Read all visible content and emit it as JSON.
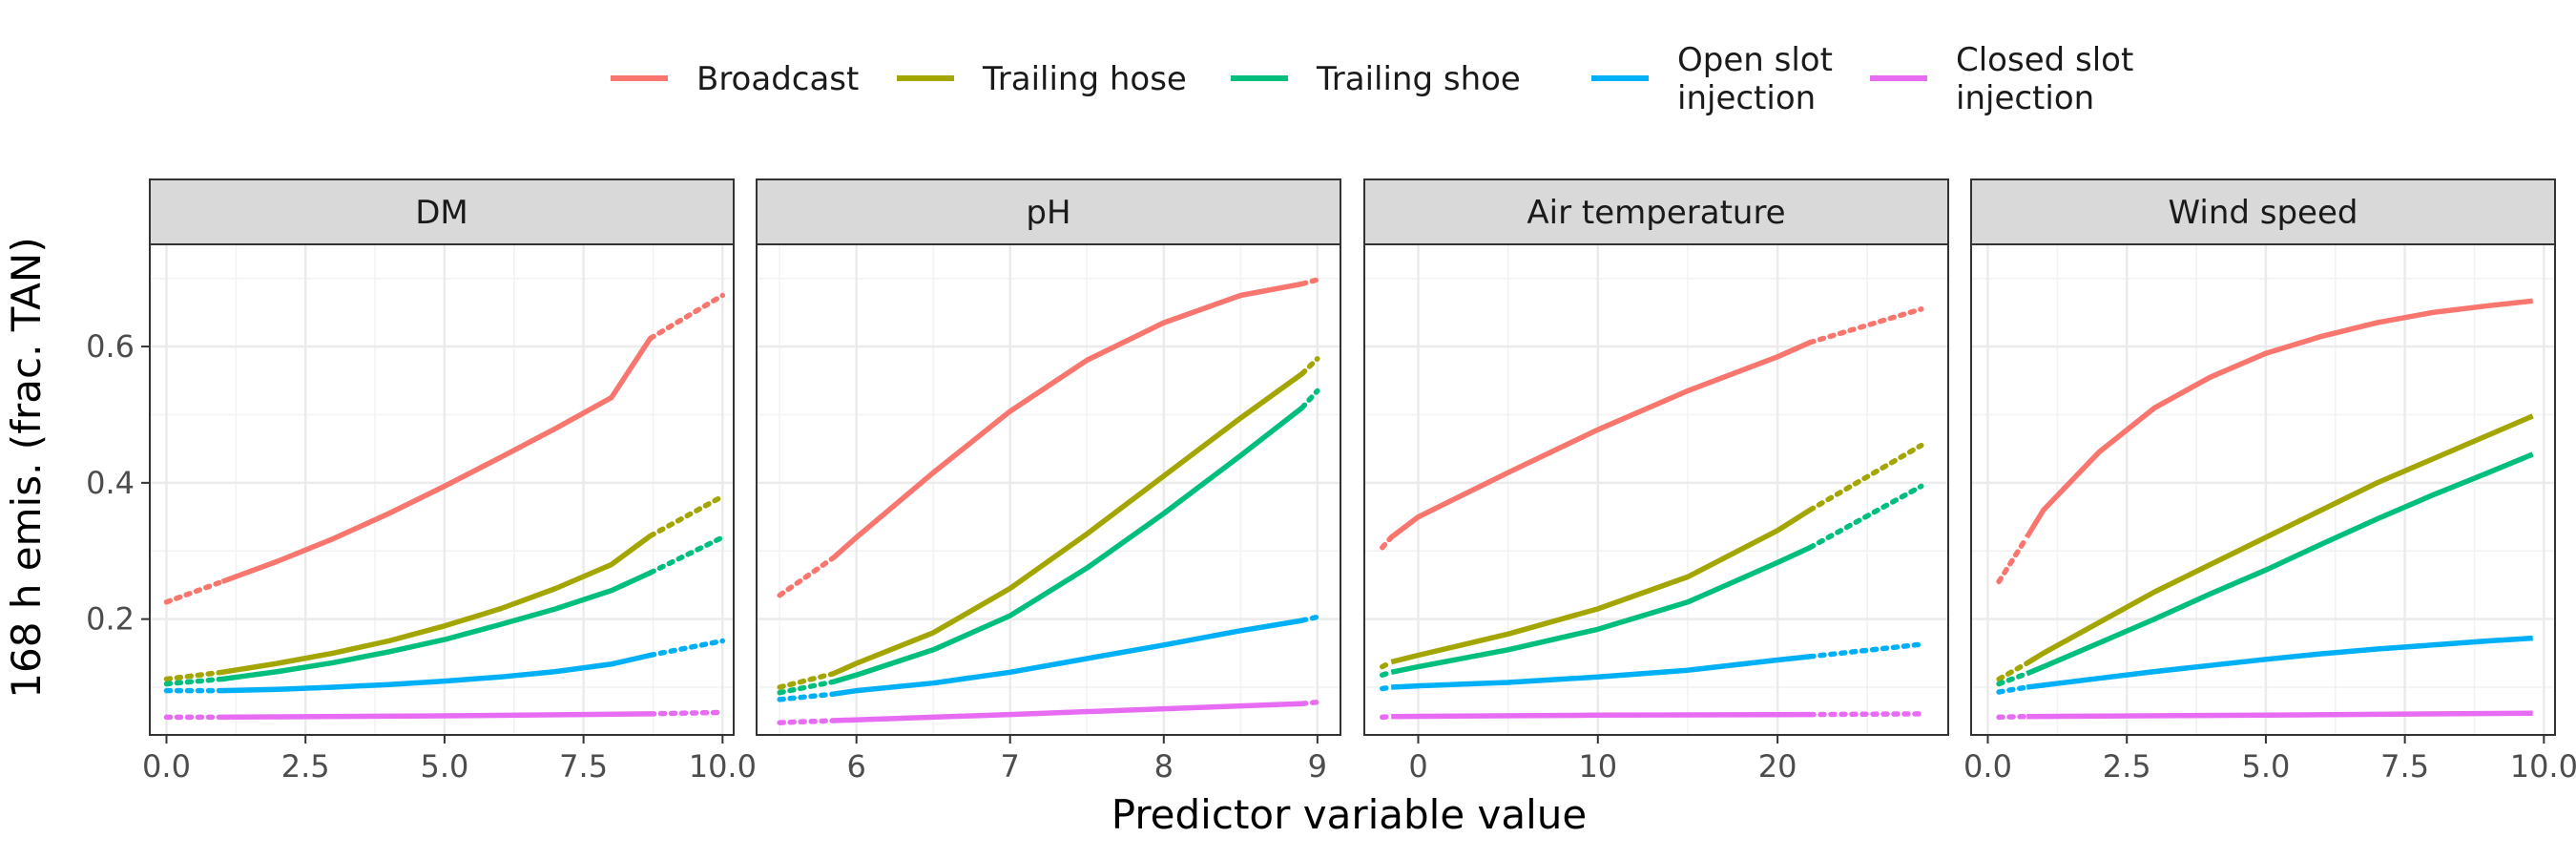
{
  "chart_data": {
    "type": "line",
    "xlabel": "Predictor variable value",
    "ylabel": "168 h emis. (frac. TAN)",
    "ylim": [
      0.03,
      0.75
    ],
    "y_ticks": [
      0.2,
      0.4,
      0.6
    ],
    "y_tick_labels": [
      "0.2",
      "0.4",
      "0.6"
    ],
    "grid": true,
    "legend_position": "top",
    "line_style_note": "solid within observed range, dotted outside",
    "legend": [
      {
        "name": "Broadcast",
        "color": "#F8766D"
      },
      {
        "name": "Trailing hose",
        "color": "#A3A500"
      },
      {
        "name": "Trailing shoe",
        "color": "#00BF7D"
      },
      {
        "name": "Open slot\ninjection",
        "color": "#00B0F6"
      },
      {
        "name": "Closed slot\ninjection",
        "color": "#E76BF3"
      }
    ],
    "panels": [
      {
        "title": "DM",
        "xlim": [
          -0.3,
          10.2
        ],
        "x_ticks": [
          0,
          2.5,
          5,
          7.5,
          10
        ],
        "x_tick_labels": [
          "0.0",
          "2.5",
          "5.0",
          "7.5",
          "10.0"
        ],
        "solid_range": [
          1.0,
          8.7
        ],
        "series": [
          {
            "legend_index": 0,
            "x": [
              0,
              1,
              2,
              3,
              4,
              5,
              6,
              7,
              8,
              8.7,
              10
            ],
            "y": [
              0.225,
              0.255,
              0.285,
              0.318,
              0.355,
              0.395,
              0.437,
              0.48,
              0.525,
              0.612,
              0.675
            ]
          },
          {
            "legend_index": 1,
            "x": [
              0,
              1,
              2,
              3,
              4,
              5,
              6,
              7,
              8,
              8.7,
              10
            ],
            "y": [
              0.112,
              0.122,
              0.135,
              0.15,
              0.168,
              0.19,
              0.215,
              0.245,
              0.28,
              0.322,
              0.38
            ]
          },
          {
            "legend_index": 2,
            "x": [
              0,
              1,
              2,
              3,
              4,
              5,
              6,
              7,
              8,
              8.7,
              10
            ],
            "y": [
              0.105,
              0.112,
              0.123,
              0.136,
              0.152,
              0.17,
              0.192,
              0.215,
              0.242,
              0.268,
              0.32
            ]
          },
          {
            "legend_index": 3,
            "x": [
              0,
              1,
              2,
              3,
              4,
              5,
              6,
              7,
              8,
              8.7,
              10
            ],
            "y": [
              0.095,
              0.095,
              0.097,
              0.1,
              0.104,
              0.109,
              0.115,
              0.123,
              0.134,
              0.147,
              0.168
            ]
          },
          {
            "legend_index": 4,
            "x": [
              0,
              1,
              5,
              8.7,
              10
            ],
            "y": [
              0.056,
              0.056,
              0.058,
              0.061,
              0.063
            ]
          }
        ]
      },
      {
        "title": "pH",
        "xlim": [
          5.35,
          9.15
        ],
        "x_ticks": [
          6,
          7,
          8,
          9
        ],
        "x_tick_labels": [
          "6",
          "7",
          "8",
          "9"
        ],
        "solid_range": [
          5.85,
          8.9
        ],
        "series": [
          {
            "legend_index": 0,
            "x": [
              5.5,
              5.85,
              6,
              6.5,
              7,
              7.5,
              8,
              8.5,
              8.9,
              9.0
            ],
            "y": [
              0.235,
              0.29,
              0.32,
              0.415,
              0.505,
              0.58,
              0.635,
              0.675,
              0.692,
              0.698
            ]
          },
          {
            "legend_index": 1,
            "x": [
              5.5,
              5.85,
              6,
              6.5,
              7,
              7.5,
              8,
              8.5,
              8.9,
              9.0
            ],
            "y": [
              0.1,
              0.12,
              0.135,
              0.18,
              0.245,
              0.325,
              0.41,
              0.495,
              0.56,
              0.582
            ]
          },
          {
            "legend_index": 2,
            "x": [
              5.5,
              5.85,
              6,
              6.5,
              7,
              7.5,
              8,
              8.5,
              8.9,
              9.0
            ],
            "y": [
              0.092,
              0.108,
              0.118,
              0.155,
              0.205,
              0.275,
              0.355,
              0.44,
              0.51,
              0.535
            ]
          },
          {
            "legend_index": 3,
            "x": [
              5.5,
              5.85,
              6,
              6.5,
              7,
              7.5,
              8,
              8.5,
              8.9,
              9.0
            ],
            "y": [
              0.082,
              0.09,
              0.095,
              0.106,
              0.122,
              0.142,
              0.162,
              0.183,
              0.198,
              0.203
            ]
          },
          {
            "legend_index": 4,
            "x": [
              5.5,
              5.85,
              7,
              8.9,
              9.0
            ],
            "y": [
              0.048,
              0.051,
              0.06,
              0.076,
              0.078
            ]
          }
        ]
      },
      {
        "title": "Air temperature",
        "xlim": [
          -3,
          29.5
        ],
        "x_ticks": [
          0,
          10,
          20
        ],
        "x_tick_labels": [
          "0",
          "10",
          "20"
        ],
        "solid_range": [
          -1.5,
          21.8
        ],
        "series": [
          {
            "legend_index": 0,
            "x": [
              -2,
              -1.5,
              0,
              5,
              10,
              15,
              20,
              21.8,
              28
            ],
            "y": [
              0.305,
              0.32,
              0.35,
              0.415,
              0.478,
              0.535,
              0.585,
              0.606,
              0.655
            ]
          },
          {
            "legend_index": 1,
            "x": [
              -2,
              -1.5,
              0,
              5,
              10,
              15,
              20,
              21.8,
              28
            ],
            "y": [
              0.13,
              0.137,
              0.147,
              0.178,
              0.215,
              0.262,
              0.33,
              0.36,
              0.455
            ]
          },
          {
            "legend_index": 2,
            "x": [
              -2,
              -1.5,
              0,
              5,
              10,
              15,
              20,
              21.8,
              28
            ],
            "y": [
              0.118,
              0.122,
              0.13,
              0.155,
              0.185,
              0.225,
              0.283,
              0.305,
              0.395
            ]
          },
          {
            "legend_index": 3,
            "x": [
              -2,
              -1.5,
              0,
              5,
              10,
              15,
              20,
              21.8,
              28
            ],
            "y": [
              0.098,
              0.1,
              0.102,
              0.107,
              0.115,
              0.125,
              0.14,
              0.145,
              0.163
            ]
          },
          {
            "legend_index": 4,
            "x": [
              -2,
              -1.5,
              10,
              21.8,
              28
            ],
            "y": [
              0.056,
              0.057,
              0.059,
              0.06,
              0.061
            ]
          }
        ]
      },
      {
        "title": "Wind speed",
        "xlim": [
          -0.3,
          10.2
        ],
        "x_ticks": [
          0,
          2.5,
          5,
          7.5,
          10
        ],
        "x_tick_labels": [
          "0.0",
          "2.5",
          "5.0",
          "7.5",
          "10.0"
        ],
        "solid_range": [
          0.7,
          9.8
        ],
        "series": [
          {
            "legend_index": 0,
            "x": [
              0.2,
              0.7,
              1,
              2,
              3,
              4,
              5,
              6,
              7,
              8,
              9,
              9.8
            ],
            "y": [
              0.255,
              0.32,
              0.36,
              0.445,
              0.51,
              0.555,
              0.59,
              0.615,
              0.635,
              0.65,
              0.66,
              0.667
            ]
          },
          {
            "legend_index": 1,
            "x": [
              0.2,
              0.7,
              1,
              2,
              3,
              4,
              5,
              6,
              7,
              8,
              9,
              9.8
            ],
            "y": [
              0.112,
              0.135,
              0.15,
              0.195,
              0.24,
              0.28,
              0.32,
              0.36,
              0.4,
              0.435,
              0.47,
              0.498
            ]
          },
          {
            "legend_index": 2,
            "x": [
              0.2,
              0.7,
              1,
              2,
              3,
              4,
              5,
              6,
              7,
              8,
              9,
              9.8
            ],
            "y": [
              0.105,
              0.12,
              0.13,
              0.165,
              0.2,
              0.237,
              0.272,
              0.31,
              0.347,
              0.382,
              0.415,
              0.442
            ]
          },
          {
            "legend_index": 3,
            "x": [
              0.2,
              0.7,
              1,
              2,
              3,
              4,
              5,
              6,
              7,
              8,
              9,
              9.8
            ],
            "y": [
              0.093,
              0.1,
              0.103,
              0.113,
              0.123,
              0.132,
              0.141,
              0.149,
              0.156,
              0.162,
              0.168,
              0.172
            ]
          },
          {
            "legend_index": 4,
            "x": [
              0.2,
              0.7,
              5,
              9.8
            ],
            "y": [
              0.056,
              0.057,
              0.059,
              0.062
            ]
          }
        ]
      }
    ]
  }
}
